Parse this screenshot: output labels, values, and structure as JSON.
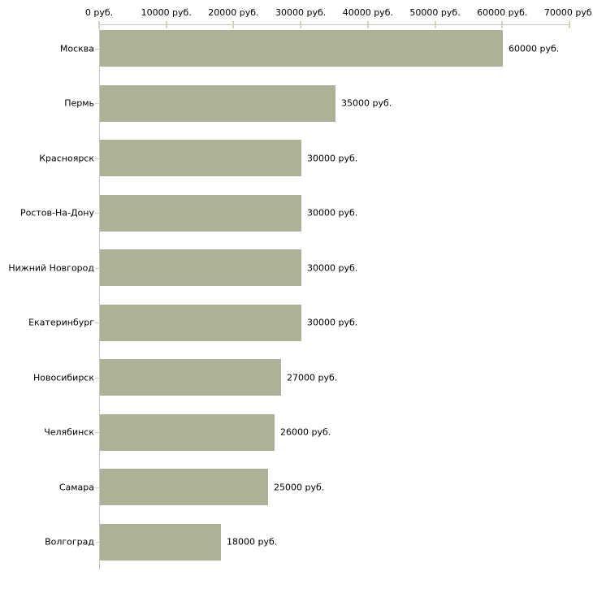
{
  "chart_data": {
    "type": "bar",
    "orientation": "horizontal",
    "title": "",
    "xlabel": "",
    "ylabel": "",
    "grid": false,
    "legend": false,
    "categories": [
      "Москва",
      "Пермь",
      "Красноярск",
      "Ростов-На-Дону",
      "Нижний Новгород",
      "Екатеринбург",
      "Новосибирск",
      "Челябинск",
      "Самара",
      "Волгоград"
    ],
    "values": [
      60000,
      35000,
      30000,
      30000,
      30000,
      30000,
      27000,
      26000,
      25000,
      18000
    ],
    "value_labels": [
      "60000 руб.",
      "35000 руб.",
      "30000 руб.",
      "30000 руб.",
      "30000 руб.",
      "30000 руб.",
      "27000 руб.",
      "26000 руб.",
      "25000 руб.",
      "18000 руб."
    ],
    "x_tick_values": [
      0,
      10000,
      20000,
      30000,
      40000,
      50000,
      60000,
      70000
    ],
    "x_tick_labels": [
      "0 руб.",
      "10000 руб.",
      "20000 руб.",
      "30000 руб.",
      "40000 руб.",
      "50000 руб.",
      "60000 руб.",
      "70000 руб."
    ],
    "xlim": [
      0,
      70000
    ],
    "colors": {
      "bar": "#abb297",
      "axis": "#c6c6c6",
      "tick": "#d2d5bc",
      "text": "#000000",
      "background": "#ffffff"
    }
  }
}
